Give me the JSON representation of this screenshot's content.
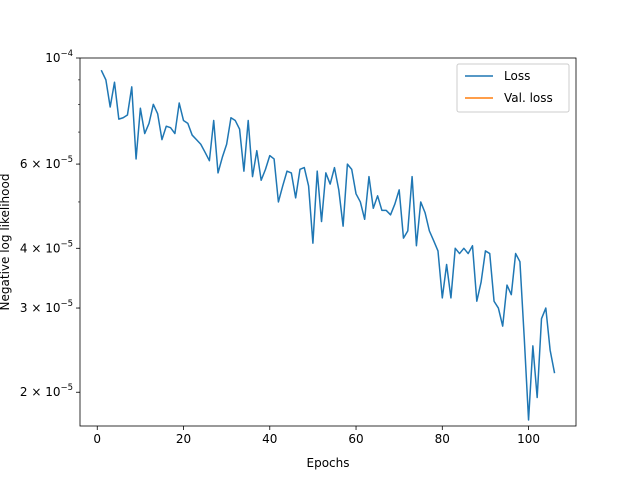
{
  "chart_data": {
    "type": "line",
    "title": "",
    "xlabel": "Epochs",
    "ylabel": "Negative log likelihood",
    "xlim": [
      -4,
      111
    ],
    "ylim": [
      1.7e-05,
      0.0001
    ],
    "yscale": "log",
    "grid": false,
    "legend": "top-right",
    "x_ticks": [
      0,
      20,
      40,
      60,
      80,
      100
    ],
    "x_tick_labels": [
      "0",
      "20",
      "40",
      "60",
      "80",
      "100"
    ],
    "y_ticks": [
      0.0001,
      6e-05,
      4e-05,
      3e-05,
      2e-05
    ],
    "y_tick_labels": [
      {
        "base": "10",
        "exp": "−4",
        "mantissa": ""
      },
      {
        "base": "10",
        "exp": "−5",
        "mantissa": "6 × "
      },
      {
        "base": "10",
        "exp": "−5",
        "mantissa": "4 × "
      },
      {
        "base": "10",
        "exp": "−5",
        "mantissa": "3 × "
      },
      {
        "base": "10",
        "exp": "−5",
        "mantissa": "2 × "
      }
    ],
    "series": [
      {
        "name": "Loss",
        "color": "#1f77b4",
        "x": [
          1,
          2,
          3,
          4,
          5,
          6,
          7,
          8,
          9,
          10,
          11,
          12,
          13,
          14,
          15,
          16,
          17,
          18,
          19,
          20,
          21,
          22,
          23,
          24,
          25,
          26,
          27,
          28,
          29,
          30,
          31,
          32,
          33,
          34,
          35,
          36,
          37,
          38,
          39,
          40,
          41,
          42,
          43,
          44,
          45,
          46,
          47,
          48,
          49,
          50,
          51,
          52,
          53,
          54,
          55,
          56,
          57,
          58,
          59,
          60,
          61,
          62,
          63,
          64,
          65,
          66,
          67,
          68,
          69,
          70,
          71,
          72,
          73,
          74,
          75,
          76,
          77,
          78,
          79,
          80,
          81,
          82,
          83,
          84,
          85,
          86,
          87,
          88,
          89,
          90,
          91,
          92,
          93,
          94,
          95,
          96,
          97,
          98,
          99,
          100,
          101,
          102,
          103,
          104,
          105,
          106
        ],
        "y": [
          9.4e-05,
          9e-05,
          7.9e-05,
          8.9e-05,
          7.45e-05,
          7.5e-05,
          7.6e-05,
          8.7e-05,
          6.15e-05,
          7.85e-05,
          6.95e-05,
          7.3e-05,
          8e-05,
          7.65e-05,
          6.75e-05,
          7.2e-05,
          7.15e-05,
          6.95e-05,
          8.05e-05,
          7.4e-05,
          7.3e-05,
          6.9e-05,
          6.75e-05,
          6.6e-05,
          6.35e-05,
          6.1e-05,
          7.4e-05,
          5.75e-05,
          6.2e-05,
          6.6e-05,
          7.5e-05,
          7.4e-05,
          7.1e-05,
          5.8e-05,
          7.4e-05,
          5.65e-05,
          6.4e-05,
          5.55e-05,
          5.85e-05,
          6.25e-05,
          6.15e-05,
          5e-05,
          5.4e-05,
          5.8e-05,
          5.75e-05,
          5.1e-05,
          5.85e-05,
          5.9e-05,
          5.4e-05,
          4.1e-05,
          5.8e-05,
          4.55e-05,
          5.75e-05,
          5.45e-05,
          5.9e-05,
          5.3e-05,
          4.45e-05,
          6e-05,
          5.85e-05,
          5.2e-05,
          5e-05,
          4.6e-05,
          5.65e-05,
          4.85e-05,
          5.15e-05,
          4.8e-05,
          4.8e-05,
          4.7e-05,
          4.95e-05,
          5.3e-05,
          4.2e-05,
          4.35e-05,
          5.65e-05,
          4.05e-05,
          5e-05,
          4.75e-05,
          4.35e-05,
          4.15e-05,
          3.95e-05,
          3.15e-05,
          3.7e-05,
          3.15e-05,
          4e-05,
          3.9e-05,
          4e-05,
          3.9e-05,
          4.05e-05,
          3.1e-05,
          3.4e-05,
          3.95e-05,
          3.9e-05,
          3.1e-05,
          3e-05,
          2.75e-05,
          3.35e-05,
          3.2e-05,
          3.9e-05,
          3.75e-05,
          2.6e-05,
          1.75e-05,
          2.5e-05,
          1.95e-05,
          2.85e-05,
          3e-05,
          2.45e-05,
          2.2e-05
        ]
      },
      {
        "name": "Val. loss",
        "color": "#ff7f0e",
        "x": [],
        "y": []
      }
    ]
  }
}
